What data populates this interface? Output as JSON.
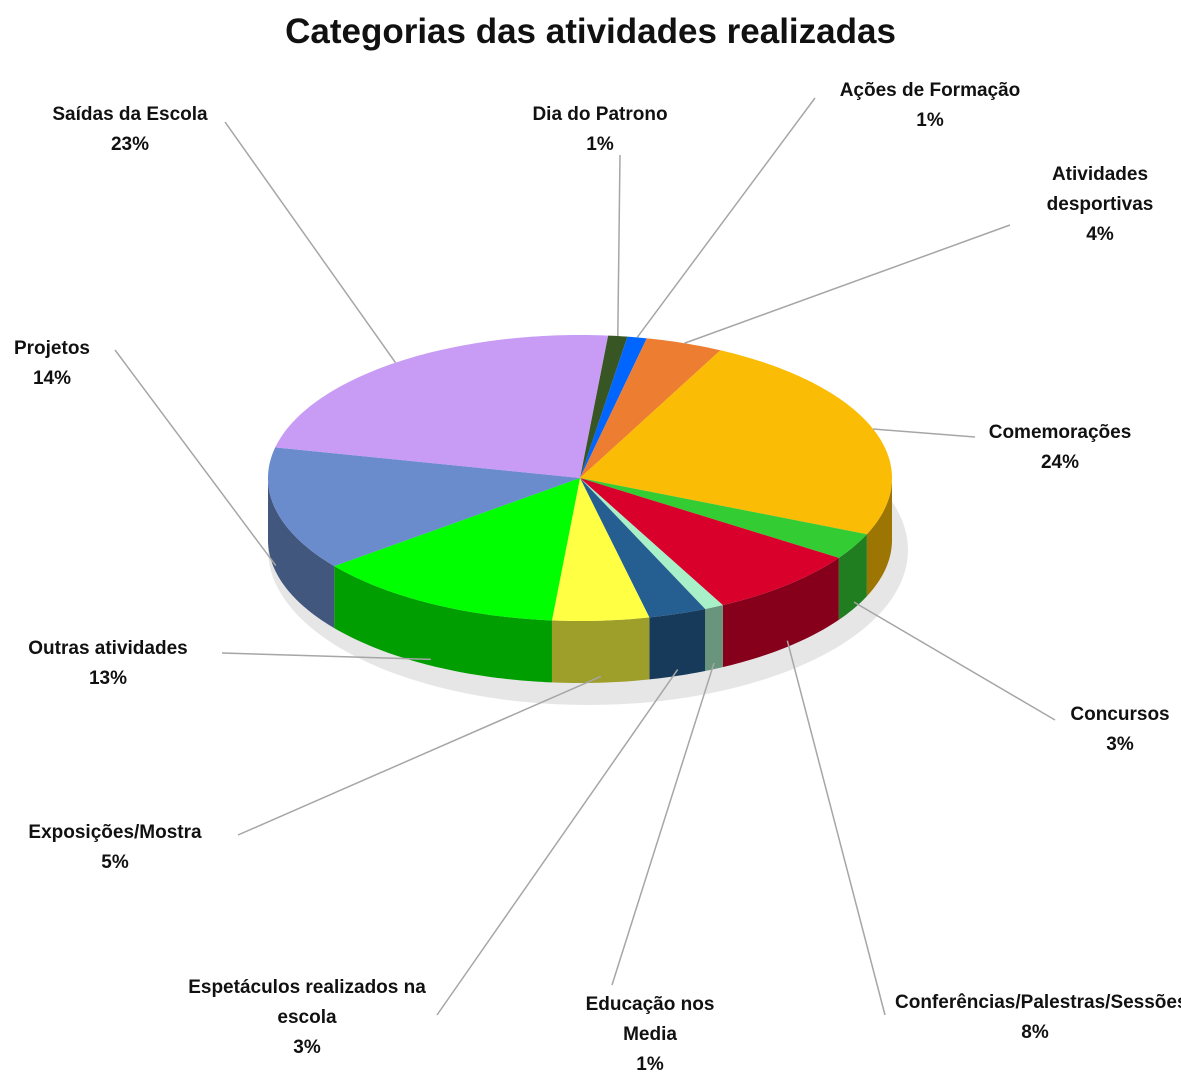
{
  "chart_data": {
    "type": "pie",
    "title": "Categorias das atividades realizadas",
    "categories": [
      "Dia do Patrono",
      "Ações de Formação",
      "Atividades desportivas",
      "Comemorações",
      "Concursos",
      "Conferências/Palestras/Sessões",
      "Educação nos Media",
      "Espetáculos realizados na escola",
      "Exposições/Mostra",
      "Outras atividades",
      "Projetos",
      "Saídas da Escola"
    ],
    "values": [
      1,
      1,
      4,
      24,
      3,
      8,
      1,
      3,
      5,
      13,
      14,
      23
    ],
    "value_labels": [
      "1%",
      "1%",
      "4%",
      "24%",
      "3%",
      "8%",
      "1%",
      "3%",
      "5%",
      "13%",
      "14%",
      "23%"
    ],
    "colors": [
      "#375623",
      "#0066ff",
      "#ed7d31",
      "#fbbc05",
      "#33cc33",
      "#d9002b",
      "#a8f0c8",
      "#255e91",
      "#ffff44",
      "#00ff00",
      "#6a8ccc",
      "#c89bf5"
    ]
  }
}
